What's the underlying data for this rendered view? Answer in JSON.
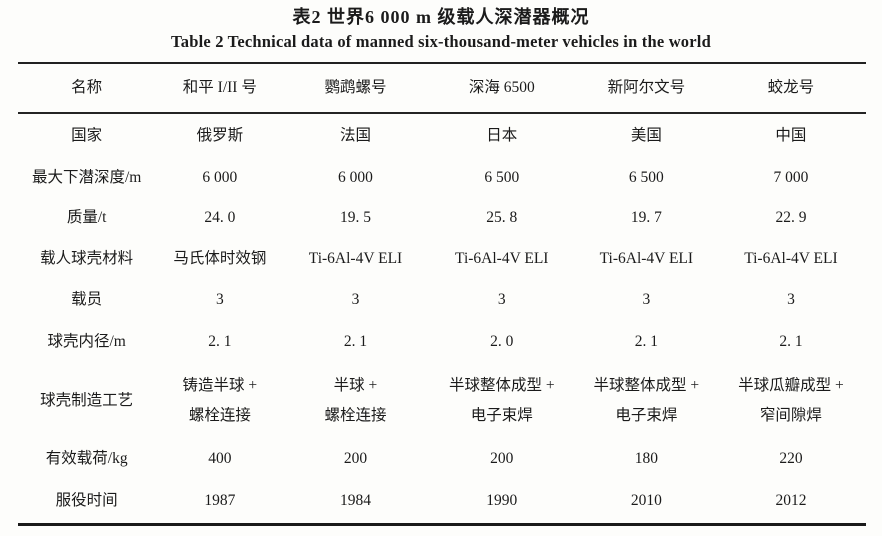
{
  "title": {
    "zh": "表2  世界6 000 m 级载人深潜器概况",
    "en": "Table 2  Technical data of manned six-thousand-meter vehicles in the world"
  },
  "table": {
    "header": [
      "名称",
      "和平 I/II 号",
      "鹦鹉螺号",
      "深海 6500",
      "新阿尔文号",
      "蛟龙号"
    ],
    "rows": [
      {
        "label": "国家",
        "values": [
          "俄罗斯",
          "法国",
          "日本",
          "美国",
          "中国"
        ]
      },
      {
        "label": "最大下潜深度/m",
        "values": [
          "6 000",
          "6 000",
          "6 500",
          "6 500",
          "7 000"
        ]
      },
      {
        "label": "质量/t",
        "values": [
          "24. 0",
          "19. 5",
          "25. 8",
          "19. 7",
          "22. 9"
        ]
      },
      {
        "label": "载人球壳材料",
        "values": [
          "马氏体时效钢",
          "Ti-6Al-4V ELI",
          "Ti-6Al-4V ELI",
          "Ti-6Al-4V ELI",
          "Ti-6Al-4V ELI"
        ]
      },
      {
        "label": "载员",
        "values": [
          "3",
          "3",
          "3",
          "3",
          "3"
        ]
      },
      {
        "label": "球壳内径/m",
        "values": [
          "2. 1",
          "2. 1",
          "2. 0",
          "2. 1",
          "2. 1"
        ]
      },
      {
        "label": "球壳制造工艺",
        "values": [
          "铸造半球 +\n螺栓连接",
          "半球 +\n螺栓连接",
          "半球整体成型 +\n电子束焊",
          "半球整体成型 +\n电子束焊",
          "半球瓜瓣成型 +\n窄间隙焊"
        ]
      },
      {
        "label": "有效载荷/kg",
        "values": [
          "400",
          "200",
          "200",
          "180",
          "220"
        ]
      },
      {
        "label": "服役时间",
        "values": [
          "1987",
          "1984",
          "1990",
          "2010",
          "2012"
        ]
      }
    ]
  },
  "colors": {
    "background": "#fdfdfb",
    "text": "#1b1b1b",
    "rule": "#212121"
  }
}
